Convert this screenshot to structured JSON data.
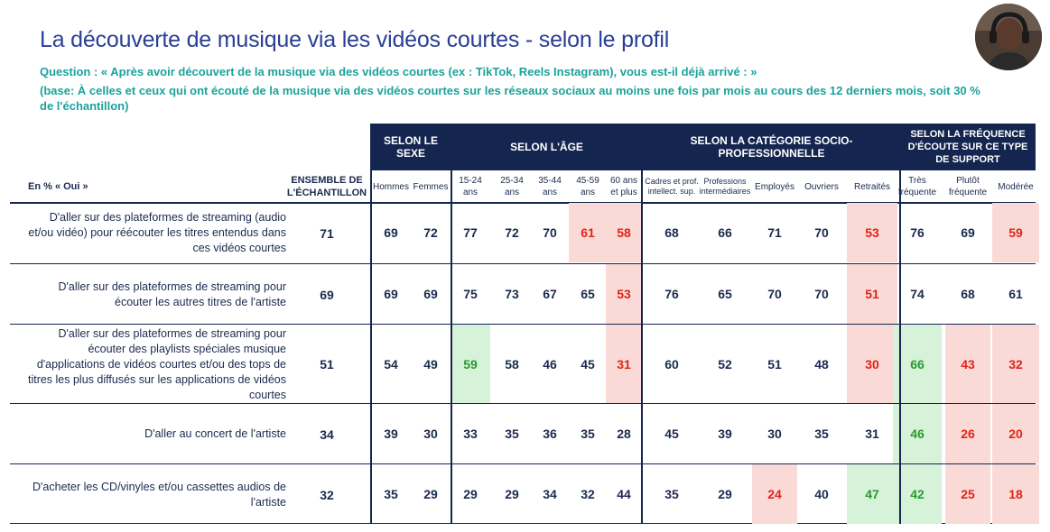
{
  "title": "La découverte de musique via les vidéos courtes - selon le profil",
  "question": "Question : « Après avoir découvert de la musique via des vidéos courtes (ex : TikTok, Reels Instagram), vous est-il déjà arrivé : »",
  "base": "(base: À celles et ceux qui ont écouté de la musique via des vidéos courtes sur les réseaux sociaux au moins une fois par mois au cours des 12 derniers mois, soit 30 % de l'échantillon)",
  "table": {
    "row_header": "En % « Oui »",
    "ensemble_header": "ENSEMBLE DE L'ÉCHANTILLON",
    "groups": [
      {
        "label": "SELON LE SEXE"
      },
      {
        "label": "SELON L'ÂGE"
      },
      {
        "label": "SELON LA CATÉGORIE SOCIO-PROFESSIONNELLE"
      },
      {
        "label": "SELON LA FRÉQUENCE D'ÉCOUTE SUR CE TYPE DE SUPPORT"
      }
    ],
    "columns": [
      {
        "label": "Hommes"
      },
      {
        "label": "Femmes"
      },
      {
        "label": "15-24 ans"
      },
      {
        "label": "25-34 ans"
      },
      {
        "label": "35-44 ans"
      },
      {
        "label": "45-59 ans"
      },
      {
        "label": "60 ans et plus"
      },
      {
        "label": "Cadres et prof. intellect. sup."
      },
      {
        "label": "Professions intermédiaires"
      },
      {
        "label": "Employés"
      },
      {
        "label": "Ouvriers"
      },
      {
        "label": "Retraités"
      },
      {
        "label": "Très fréquente"
      },
      {
        "label": "Plutôt fréquente"
      },
      {
        "label": "Modérée"
      }
    ],
    "rows": [
      {
        "label": "D'aller sur des plateformes de streaming (audio et/ou vidéo) pour réécouter les titres entendus dans ces vidéos courtes",
        "ensemble": "71",
        "values": [
          "69",
          "72",
          "77",
          "72",
          "70",
          "61",
          "58",
          "68",
          "66",
          "71",
          "70",
          "53",
          "76",
          "69",
          "59"
        ],
        "highlight": [
          "",
          "",
          "",
          "",
          "",
          "red",
          "red",
          "",
          "",
          "",
          "",
          "red",
          "",
          "",
          "red"
        ]
      },
      {
        "label": "D'aller sur des plateformes de streaming pour écouter les autres titres de l'artiste",
        "ensemble": "69",
        "values": [
          "69",
          "69",
          "75",
          "73",
          "67",
          "65",
          "53",
          "76",
          "65",
          "70",
          "70",
          "51",
          "74",
          "68",
          "61"
        ],
        "highlight": [
          "",
          "",
          "",
          "",
          "",
          "",
          "red",
          "",
          "",
          "",
          "",
          "red",
          "",
          "",
          ""
        ]
      },
      {
        "label": "D'aller sur des plateformes de streaming pour écouter des playlists spéciales musique d'applications de vidéos courtes et/ou des tops de titres les plus diffusés sur les applications de vidéos courtes",
        "ensemble": "51",
        "values": [
          "54",
          "49",
          "59",
          "58",
          "46",
          "45",
          "31",
          "60",
          "52",
          "51",
          "48",
          "30",
          "66",
          "43",
          "32"
        ],
        "highlight": [
          "",
          "",
          "green",
          "",
          "",
          "",
          "red",
          "",
          "",
          "",
          "",
          "red",
          "green",
          "red",
          "red"
        ]
      },
      {
        "label": "D'aller au concert de l'artiste",
        "ensemble": "34",
        "values": [
          "39",
          "30",
          "33",
          "35",
          "36",
          "35",
          "28",
          "45",
          "39",
          "30",
          "35",
          "31",
          "46",
          "26",
          "20"
        ],
        "highlight": [
          "",
          "",
          "",
          "",
          "",
          "",
          "",
          "",
          "",
          "",
          "",
          "",
          "green",
          "red",
          "red"
        ]
      },
      {
        "label": "D'acheter les CD/vinyles et/ou cassettes audios de l'artiste",
        "ensemble": "32",
        "values": [
          "35",
          "29",
          "29",
          "29",
          "34",
          "32",
          "44",
          "35",
          "29",
          "24",
          "40",
          "47",
          "42",
          "25",
          "18"
        ],
        "highlight": [
          "",
          "",
          "",
          "",
          "",
          "",
          "",
          "",
          "",
          "red",
          "",
          "green",
          "green",
          "red",
          "red"
        ]
      }
    ]
  }
}
